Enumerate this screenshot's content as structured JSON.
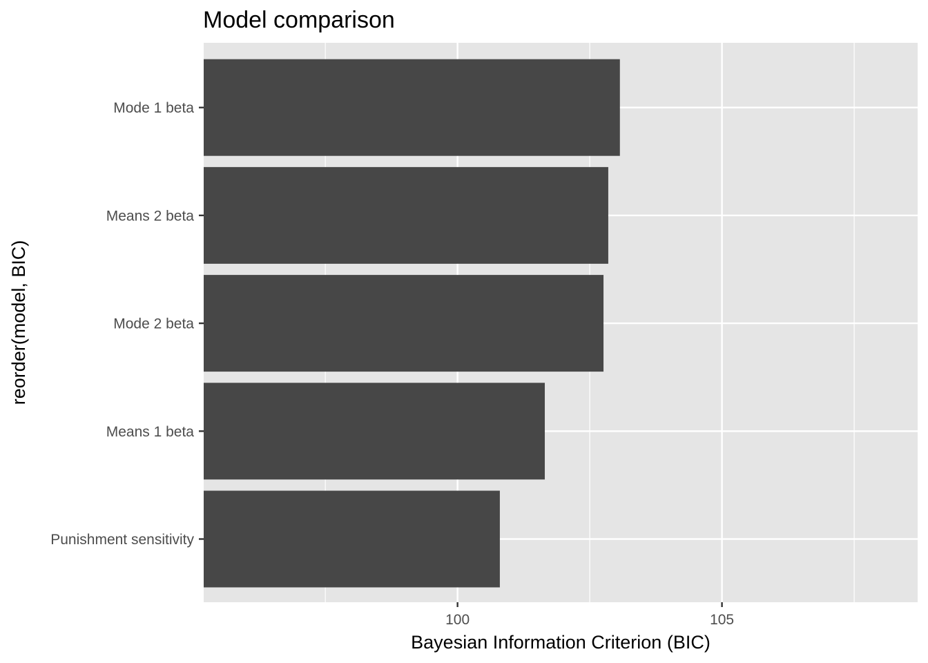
{
  "chart_data": {
    "type": "bar",
    "orientation": "horizontal",
    "title": "Model comparison",
    "xlabel": "Bayesian Information Criterion (BIC)",
    "ylabel": "reorder(model, BIC)",
    "categories": [
      "Punishment sensitivity",
      "Means 1 beta",
      "Mode 2 beta",
      "Means 2 beta",
      "Mode 1 beta"
    ],
    "values": [
      100.8,
      101.65,
      102.76,
      102.85,
      103.07
    ],
    "xlim": [
      95.2,
      108.7
    ],
    "xticks": [
      100,
      105
    ],
    "xtick_labels": [
      "100",
      "105"
    ],
    "grid": true,
    "colors": {
      "bar": "#474747",
      "panel": "#e5e5e5",
      "grid": "#ffffff",
      "tick_text": "#4d4d4d"
    }
  }
}
